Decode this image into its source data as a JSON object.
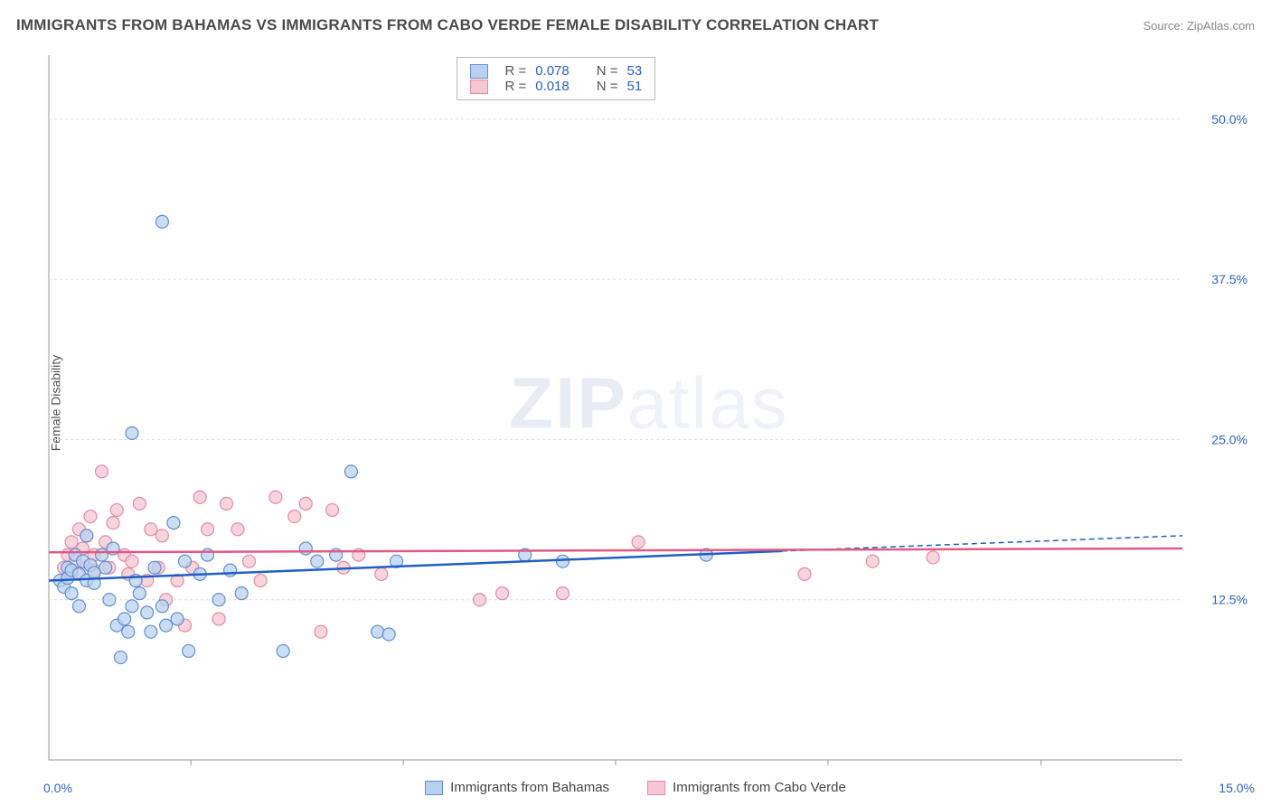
{
  "title": "IMMIGRANTS FROM BAHAMAS VS IMMIGRANTS FROM CABO VERDE FEMALE DISABILITY CORRELATION CHART",
  "source_label": "Source: ZipAtlas.com",
  "y_axis_label": "Female Disability",
  "watermark": {
    "bold": "ZIP",
    "light": "atlas"
  },
  "chart": {
    "type": "scatter",
    "xlim": [
      0,
      15
    ],
    "ylim": [
      0,
      55
    ],
    "x_ticks_labeled": {
      "min": "0.0%",
      "max": "15.0%"
    },
    "x_tick_positions_unlabeled": [
      1.88,
      4.69,
      7.5,
      10.31,
      13.13
    ],
    "y_ticks": [
      {
        "v": 12.5,
        "label": "12.5%"
      },
      {
        "v": 25.0,
        "label": "25.0%"
      },
      {
        "v": 37.5,
        "label": "37.5%"
      },
      {
        "v": 50.0,
        "label": "50.0%"
      }
    ],
    "background_color": "#ffffff",
    "grid_color": "#dcdcdc",
    "axis_line_color": "#999999",
    "tick_label_color": "#2a62c9",
    "marker_radius": 7,
    "series": [
      {
        "name": "Immigrants from Bahamas",
        "fill": "#b9d1ef",
        "stroke": "#5f8fd6",
        "line_color": "#1f5fc4",
        "line_dash_extension": true,
        "trend": {
          "x1": 0,
          "y1": 14.0,
          "x2": 9.7,
          "y2": 16.3,
          "x2_ext": 15,
          "y2_ext": 17.5
        },
        "points": [
          [
            0.15,
            14.0
          ],
          [
            0.2,
            13.5
          ],
          [
            0.25,
            15.0
          ],
          [
            0.25,
            14.2
          ],
          [
            0.3,
            13.0
          ],
          [
            0.3,
            14.8
          ],
          [
            0.35,
            16.0
          ],
          [
            0.4,
            14.5
          ],
          [
            0.4,
            12.0
          ],
          [
            0.45,
            15.5
          ],
          [
            0.5,
            14.0
          ],
          [
            0.5,
            17.5
          ],
          [
            0.55,
            15.2
          ],
          [
            0.6,
            13.8
          ],
          [
            0.6,
            14.6
          ],
          [
            0.7,
            16.0
          ],
          [
            0.75,
            15.0
          ],
          [
            0.8,
            12.5
          ],
          [
            0.85,
            16.5
          ],
          [
            0.9,
            10.5
          ],
          [
            0.95,
            8.0
          ],
          [
            1.0,
            11.0
          ],
          [
            1.05,
            10.0
          ],
          [
            1.1,
            25.5
          ],
          [
            1.1,
            12.0
          ],
          [
            1.15,
            14.0
          ],
          [
            1.2,
            13.0
          ],
          [
            1.3,
            11.5
          ],
          [
            1.35,
            10.0
          ],
          [
            1.4,
            15.0
          ],
          [
            1.5,
            12.0
          ],
          [
            1.5,
            42.0
          ],
          [
            1.55,
            10.5
          ],
          [
            1.65,
            18.5
          ],
          [
            1.7,
            11.0
          ],
          [
            1.8,
            15.5
          ],
          [
            1.85,
            8.5
          ],
          [
            2.0,
            14.5
          ],
          [
            2.1,
            16.0
          ],
          [
            2.25,
            12.5
          ],
          [
            2.4,
            14.8
          ],
          [
            2.55,
            13.0
          ],
          [
            3.1,
            8.5
          ],
          [
            3.4,
            16.5
          ],
          [
            3.55,
            15.5
          ],
          [
            3.8,
            16.0
          ],
          [
            4.0,
            22.5
          ],
          [
            4.35,
            10.0
          ],
          [
            4.5,
            9.8
          ],
          [
            4.6,
            15.5
          ],
          [
            6.3,
            16.0
          ],
          [
            6.8,
            15.5
          ],
          [
            8.7,
            16.0
          ]
        ]
      },
      {
        "name": "Immigrants from Cabo Verde",
        "fill": "#f6c6d2",
        "stroke": "#e68aa2",
        "line_color": "#e05a84",
        "line_dash_extension": false,
        "trend": {
          "x1": 0,
          "y1": 16.2,
          "x2": 15,
          "y2": 16.5
        },
        "points": [
          [
            0.2,
            15.0
          ],
          [
            0.25,
            16.0
          ],
          [
            0.3,
            17.0
          ],
          [
            0.3,
            14.5
          ],
          [
            0.35,
            15.5
          ],
          [
            0.4,
            18.0
          ],
          [
            0.45,
            16.5
          ],
          [
            0.5,
            17.5
          ],
          [
            0.5,
            15.0
          ],
          [
            0.55,
            19.0
          ],
          [
            0.6,
            16.0
          ],
          [
            0.6,
            14.8
          ],
          [
            0.7,
            22.5
          ],
          [
            0.75,
            17.0
          ],
          [
            0.8,
            15.0
          ],
          [
            0.85,
            18.5
          ],
          [
            0.9,
            19.5
          ],
          [
            1.0,
            16.0
          ],
          [
            1.05,
            14.5
          ],
          [
            1.1,
            15.5
          ],
          [
            1.2,
            20.0
          ],
          [
            1.3,
            14.0
          ],
          [
            1.35,
            18.0
          ],
          [
            1.45,
            15.0
          ],
          [
            1.5,
            17.5
          ],
          [
            1.55,
            12.5
          ],
          [
            1.7,
            14.0
          ],
          [
            1.8,
            10.5
          ],
          [
            1.9,
            15.0
          ],
          [
            2.0,
            20.5
          ],
          [
            2.1,
            18.0
          ],
          [
            2.25,
            11.0
          ],
          [
            2.35,
            20.0
          ],
          [
            2.5,
            18.0
          ],
          [
            2.65,
            15.5
          ],
          [
            2.8,
            14.0
          ],
          [
            3.0,
            20.5
          ],
          [
            3.25,
            19.0
          ],
          [
            3.4,
            20.0
          ],
          [
            3.6,
            10.0
          ],
          [
            3.75,
            19.5
          ],
          [
            3.9,
            15.0
          ],
          [
            4.1,
            16.0
          ],
          [
            4.4,
            14.5
          ],
          [
            5.7,
            12.5
          ],
          [
            6.0,
            13.0
          ],
          [
            6.8,
            13.0
          ],
          [
            7.8,
            17.0
          ],
          [
            10.0,
            14.5
          ],
          [
            10.9,
            15.5
          ],
          [
            11.7,
            15.8
          ]
        ]
      }
    ]
  },
  "top_legend": {
    "rows": [
      {
        "swatch_fill": "#b9d1ef",
        "swatch_stroke": "#5f8fd6",
        "r_label": "R =",
        "r_val": "0.078",
        "n_label": "N =",
        "n_val": "53"
      },
      {
        "swatch_fill": "#f6c6d2",
        "swatch_stroke": "#e68aa2",
        "r_label": "R =",
        "r_val": "0.018",
        "n_label": "N =",
        "n_val": "51"
      }
    ]
  },
  "bottom_legend": [
    {
      "swatch_fill": "#b9d1ef",
      "swatch_stroke": "#5f8fd6",
      "label": "Immigrants from Bahamas"
    },
    {
      "swatch_fill": "#f6c6d2",
      "swatch_stroke": "#e68aa2",
      "label": "Immigrants from Cabo Verde"
    }
  ]
}
